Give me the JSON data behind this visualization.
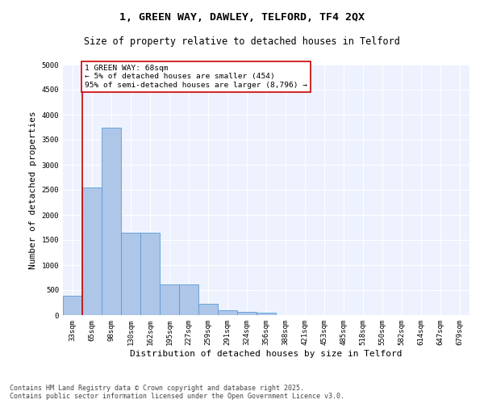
{
  "title": "1, GREEN WAY, DAWLEY, TELFORD, TF4 2QX",
  "subtitle": "Size of property relative to detached houses in Telford",
  "xlabel": "Distribution of detached houses by size in Telford",
  "ylabel": "Number of detached properties",
  "categories": [
    "33sqm",
    "65sqm",
    "98sqm",
    "130sqm",
    "162sqm",
    "195sqm",
    "227sqm",
    "259sqm",
    "291sqm",
    "324sqm",
    "356sqm",
    "388sqm",
    "421sqm",
    "453sqm",
    "485sqm",
    "518sqm",
    "550sqm",
    "582sqm",
    "614sqm",
    "647sqm",
    "679sqm"
  ],
  "values": [
    380,
    2550,
    3750,
    1650,
    1650,
    620,
    620,
    220,
    100,
    65,
    45,
    0,
    0,
    0,
    0,
    0,
    0,
    0,
    0,
    0,
    0
  ],
  "bar_color": "#aec6e8",
  "bar_edge_color": "#5b9bd5",
  "bar_width": 1.0,
  "ylim": [
    0,
    5000
  ],
  "yticks": [
    0,
    500,
    1000,
    1500,
    2000,
    2500,
    3000,
    3500,
    4000,
    4500,
    5000
  ],
  "vline_x": 0.5,
  "vline_color": "#cc0000",
  "annotation_text": "1 GREEN WAY: 68sqm\n← 5% of detached houses are smaller (454)\n95% of semi-detached houses are larger (8,796) →",
  "annotation_box_color": "#cc0000",
  "footer_line1": "Contains HM Land Registry data © Crown copyright and database right 2025.",
  "footer_line2": "Contains public sector information licensed under the Open Government Licence v3.0.",
  "background_color": "#eef2ff",
  "grid_color": "#ffffff",
  "title_fontsize": 9.5,
  "subtitle_fontsize": 8.5,
  "axis_label_fontsize": 8,
  "tick_fontsize": 6.5,
  "annotation_fontsize": 6.8,
  "footer_fontsize": 6
}
